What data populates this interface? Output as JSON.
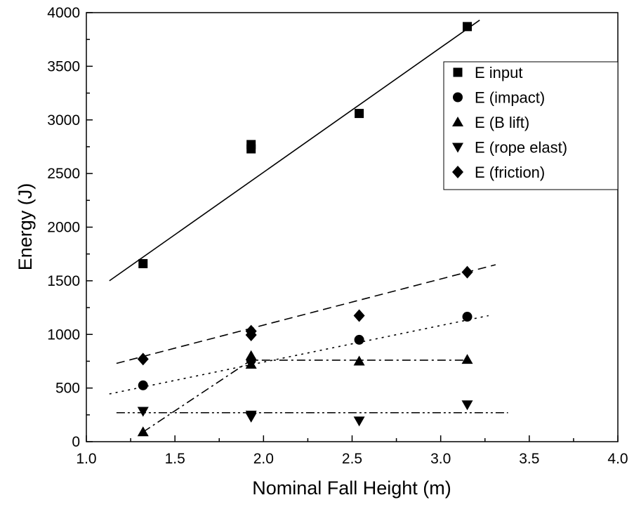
{
  "chart_data": {
    "type": "scatter",
    "title": "",
    "xlabel": "Nominal Fall Height (m)",
    "ylabel": "Energy (J)",
    "xlim": [
      1.0,
      4.0
    ],
    "ylim": [
      0,
      4000
    ],
    "xticks": [
      "1.0",
      "1.5",
      "2.0",
      "2.5",
      "3.0",
      "3.5",
      "4.0"
    ],
    "yticks": [
      "0",
      "500",
      "1000",
      "1500",
      "2000",
      "2500",
      "3000",
      "3500",
      "4000"
    ],
    "grid": false,
    "legend_position": "top-right",
    "series": [
      {
        "name": "E input",
        "marker": "square",
        "points": [
          [
            1.32,
            1660
          ],
          [
            1.93,
            2730
          ],
          [
            1.93,
            2770
          ],
          [
            2.54,
            3060
          ],
          [
            3.15,
            3870
          ]
        ],
        "fit_line": {
          "style": "solid",
          "x": [
            1.13,
            3.22
          ],
          "y": [
            1500,
            3930
          ]
        }
      },
      {
        "name": "E (impact)",
        "marker": "circle",
        "points": [
          [
            1.32,
            525
          ],
          [
            1.93,
            760
          ],
          [
            2.54,
            950
          ],
          [
            3.15,
            1165
          ]
        ],
        "fit_line": {
          "style": "dotted",
          "x": [
            1.13,
            3.27
          ],
          "y": [
            445,
            1175
          ]
        }
      },
      {
        "name": "E (B lift)",
        "marker": "triangle-up",
        "points": [
          [
            1.32,
            90
          ],
          [
            1.93,
            720
          ],
          [
            1.93,
            800
          ],
          [
            2.54,
            750
          ],
          [
            3.15,
            765
          ]
        ],
        "fit_line": {
          "style": "dash-dot",
          "x": [
            1.32,
            1.93,
            3.15
          ],
          "y": [
            90,
            760,
            760
          ]
        }
      },
      {
        "name": "E (rope elast)",
        "marker": "triangle-down",
        "points": [
          [
            1.32,
            285
          ],
          [
            1.93,
            250
          ],
          [
            1.93,
            230
          ],
          [
            2.54,
            195
          ],
          [
            3.15,
            345
          ]
        ],
        "fit_line": {
          "style": "dash-dot-dot",
          "x": [
            1.17,
            3.38
          ],
          "y": [
            270,
            270
          ]
        }
      },
      {
        "name": "E (friction)",
        "marker": "diamond",
        "points": [
          [
            1.32,
            770
          ],
          [
            1.93,
            1030
          ],
          [
            1.93,
            995
          ],
          [
            2.54,
            1175
          ],
          [
            3.15,
            1580
          ]
        ],
        "fit_line": {
          "style": "dashed",
          "x": [
            1.17,
            3.31
          ],
          "y": [
            730,
            1650
          ]
        }
      }
    ]
  }
}
